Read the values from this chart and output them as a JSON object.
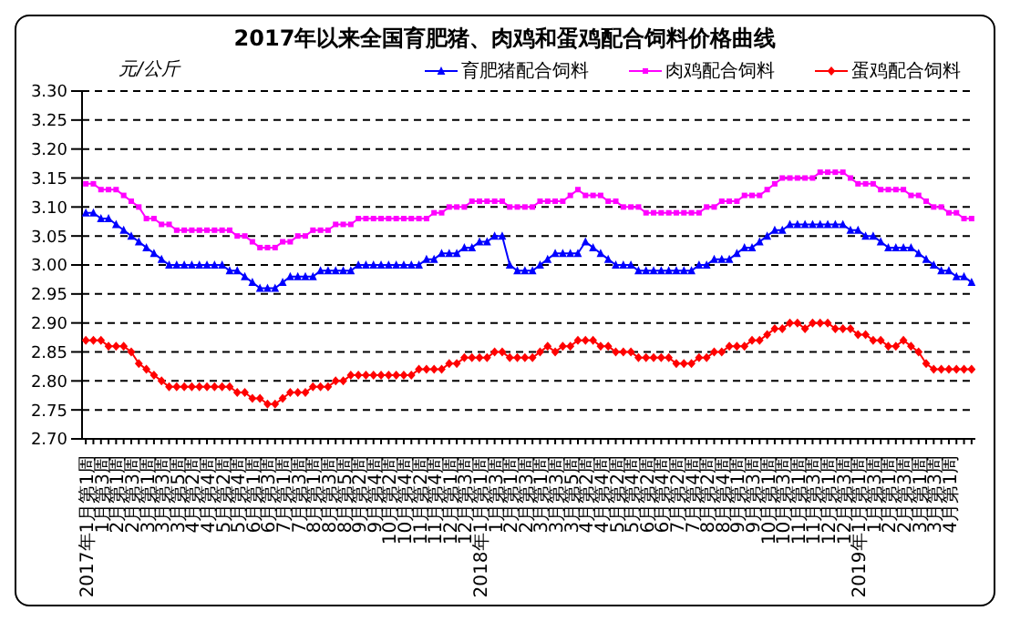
{
  "chart_data": {
    "type": "line",
    "title": "2017年以来全国育肥猪、肉鸡和蛋鸡配合饲料价格曲线",
    "ylabel": "元/公斤",
    "categories": [
      "2017年1月第1周",
      null,
      "1月第3周",
      null,
      "2月第1周",
      null,
      "2月第3周",
      null,
      "3月第1周",
      null,
      "3月第3周",
      null,
      "3月第5周",
      null,
      "4月第2周",
      null,
      "4月第4周",
      null,
      "5月第2周",
      null,
      "5月第4周",
      null,
      "6月第1周",
      null,
      "6月第3周",
      null,
      "7月第1周",
      null,
      "7月第3周",
      null,
      "8月第1周",
      null,
      "8月第3周",
      null,
      "8月第5周",
      null,
      "9月第2周",
      null,
      "9月第4周",
      null,
      "10月第2周",
      null,
      "10月第4周",
      null,
      "11月第2周",
      null,
      "11月第4周",
      null,
      "12月第1周",
      null,
      "12月第3周",
      null,
      "2018年1月第1周",
      null,
      "1月第3周",
      null,
      "2月第1周",
      null,
      "2月第3周",
      null,
      "3月第1周",
      null,
      "3月第3周",
      null,
      "3月第5周",
      null,
      "4月第2周",
      null,
      "4月第4周",
      null,
      "5月第2周",
      null,
      "5月第4周",
      null,
      "6月第2周",
      null,
      "6月第4周",
      null,
      "7月第2周",
      null,
      "7月第4周",
      null,
      "8月第2周",
      null,
      "8月第4周",
      null,
      "9月第1周",
      null,
      "9月第3周",
      null,
      "10月第1周",
      null,
      "10月第3周",
      null,
      "11月第1周",
      null,
      "11月第3周",
      null,
      "12月第1周",
      null,
      "12月第3周",
      null,
      "2019年1月第1周",
      null,
      "1月第3周",
      null,
      "2月第1周",
      null,
      "2月第3周",
      null,
      "3月第1周",
      null,
      "3月第3周",
      null,
      "4月第1周",
      null,
      null,
      null
    ],
    "series": [
      {
        "name": "育肥猪配合饲料",
        "color": "#0000ff",
        "marker": "triangle",
        "values": [
          3.09,
          3.09,
          3.08,
          3.08,
          3.07,
          3.06,
          3.05,
          3.04,
          3.03,
          3.02,
          3.01,
          3.0,
          3.0,
          3.0,
          3.0,
          3.0,
          3.0,
          3.0,
          3.0,
          2.99,
          2.99,
          2.98,
          2.97,
          2.96,
          2.96,
          2.96,
          2.97,
          2.98,
          2.98,
          2.98,
          2.98,
          2.99,
          2.99,
          2.99,
          2.99,
          2.99,
          3.0,
          3.0,
          3.0,
          3.0,
          3.0,
          3.0,
          3.0,
          3.0,
          3.0,
          3.01,
          3.01,
          3.02,
          3.02,
          3.02,
          3.03,
          3.03,
          3.04,
          3.04,
          3.05,
          3.05,
          3.0,
          2.99,
          2.99,
          2.99,
          3.0,
          3.01,
          3.02,
          3.02,
          3.02,
          3.02,
          3.04,
          3.03,
          3.02,
          3.01,
          3.0,
          3.0,
          3.0,
          2.99,
          2.99,
          2.99,
          2.99,
          2.99,
          2.99,
          2.99,
          2.99,
          3.0,
          3.0,
          3.01,
          3.01,
          3.01,
          3.02,
          3.03,
          3.03,
          3.04,
          3.05,
          3.06,
          3.06,
          3.07,
          3.07,
          3.07,
          3.07,
          3.07,
          3.07,
          3.07,
          3.07,
          3.06,
          3.06,
          3.05,
          3.05,
          3.04,
          3.03,
          3.03,
          3.03,
          3.03,
          3.02,
          3.01,
          3.0,
          2.99,
          2.99,
          2.98,
          2.98,
          2.97
        ]
      },
      {
        "name": "肉鸡配合饲料",
        "color": "#ff00ff",
        "marker": "square",
        "values": [
          3.14,
          3.14,
          3.13,
          3.13,
          3.13,
          3.12,
          3.11,
          3.1,
          3.08,
          3.08,
          3.07,
          3.07,
          3.06,
          3.06,
          3.06,
          3.06,
          3.06,
          3.06,
          3.06,
          3.06,
          3.05,
          3.05,
          3.04,
          3.03,
          3.03,
          3.03,
          3.04,
          3.04,
          3.05,
          3.05,
          3.06,
          3.06,
          3.06,
          3.07,
          3.07,
          3.07,
          3.08,
          3.08,
          3.08,
          3.08,
          3.08,
          3.08,
          3.08,
          3.08,
          3.08,
          3.08,
          3.09,
          3.09,
          3.1,
          3.1,
          3.1,
          3.11,
          3.11,
          3.11,
          3.11,
          3.11,
          3.1,
          3.1,
          3.1,
          3.1,
          3.11,
          3.11,
          3.11,
          3.11,
          3.12,
          3.13,
          3.12,
          3.12,
          3.12,
          3.11,
          3.11,
          3.1,
          3.1,
          3.1,
          3.09,
          3.09,
          3.09,
          3.09,
          3.09,
          3.09,
          3.09,
          3.09,
          3.1,
          3.1,
          3.11,
          3.11,
          3.11,
          3.12,
          3.12,
          3.12,
          3.13,
          3.14,
          3.15,
          3.15,
          3.15,
          3.15,
          3.15,
          3.16,
          3.16,
          3.16,
          3.16,
          3.15,
          3.14,
          3.14,
          3.14,
          3.13,
          3.13,
          3.13,
          3.13,
          3.12,
          3.12,
          3.11,
          3.1,
          3.1,
          3.09,
          3.09,
          3.08,
          3.08
        ]
      },
      {
        "name": "蛋鸡配合饲料",
        "color": "#ff0000",
        "marker": "diamond",
        "values": [
          2.87,
          2.87,
          2.87,
          2.86,
          2.86,
          2.86,
          2.85,
          2.83,
          2.82,
          2.81,
          2.8,
          2.79,
          2.79,
          2.79,
          2.79,
          2.79,
          2.79,
          2.79,
          2.79,
          2.79,
          2.78,
          2.78,
          2.77,
          2.77,
          2.76,
          2.76,
          2.77,
          2.78,
          2.78,
          2.78,
          2.79,
          2.79,
          2.79,
          2.8,
          2.8,
          2.81,
          2.81,
          2.81,
          2.81,
          2.81,
          2.81,
          2.81,
          2.81,
          2.81,
          2.82,
          2.82,
          2.82,
          2.82,
          2.83,
          2.83,
          2.84,
          2.84,
          2.84,
          2.84,
          2.85,
          2.85,
          2.84,
          2.84,
          2.84,
          2.84,
          2.85,
          2.86,
          2.85,
          2.86,
          2.86,
          2.87,
          2.87,
          2.87,
          2.86,
          2.86,
          2.85,
          2.85,
          2.85,
          2.84,
          2.84,
          2.84,
          2.84,
          2.84,
          2.83,
          2.83,
          2.83,
          2.84,
          2.84,
          2.85,
          2.85,
          2.86,
          2.86,
          2.86,
          2.87,
          2.87,
          2.88,
          2.89,
          2.89,
          2.9,
          2.9,
          2.89,
          2.9,
          2.9,
          2.9,
          2.89,
          2.89,
          2.89,
          2.88,
          2.88,
          2.87,
          2.87,
          2.86,
          2.86,
          2.87,
          2.86,
          2.85,
          2.83,
          2.82,
          2.82,
          2.82,
          2.82,
          2.82,
          2.82
        ]
      }
    ],
    "ylim": [
      2.7,
      3.3
    ],
    "yticks": [
      {
        "value": 2.7,
        "label": "2.70"
      },
      2.75,
      {
        "value": 2.8,
        "label": "2.80"
      },
      2.85,
      {
        "value": 2.9,
        "label": "2.90"
      },
      2.95,
      {
        "value": 3.0,
        "label": "3.00"
      },
      3.05,
      {
        "value": 3.1,
        "label": "3.10"
      },
      3.15,
      {
        "value": 3.2,
        "label": "3.20"
      },
      3.25,
      {
        "value": 3.3,
        "label": "3.30"
      }
    ],
    "grid": "y",
    "legend": "top right",
    "line_style": "solid"
  }
}
